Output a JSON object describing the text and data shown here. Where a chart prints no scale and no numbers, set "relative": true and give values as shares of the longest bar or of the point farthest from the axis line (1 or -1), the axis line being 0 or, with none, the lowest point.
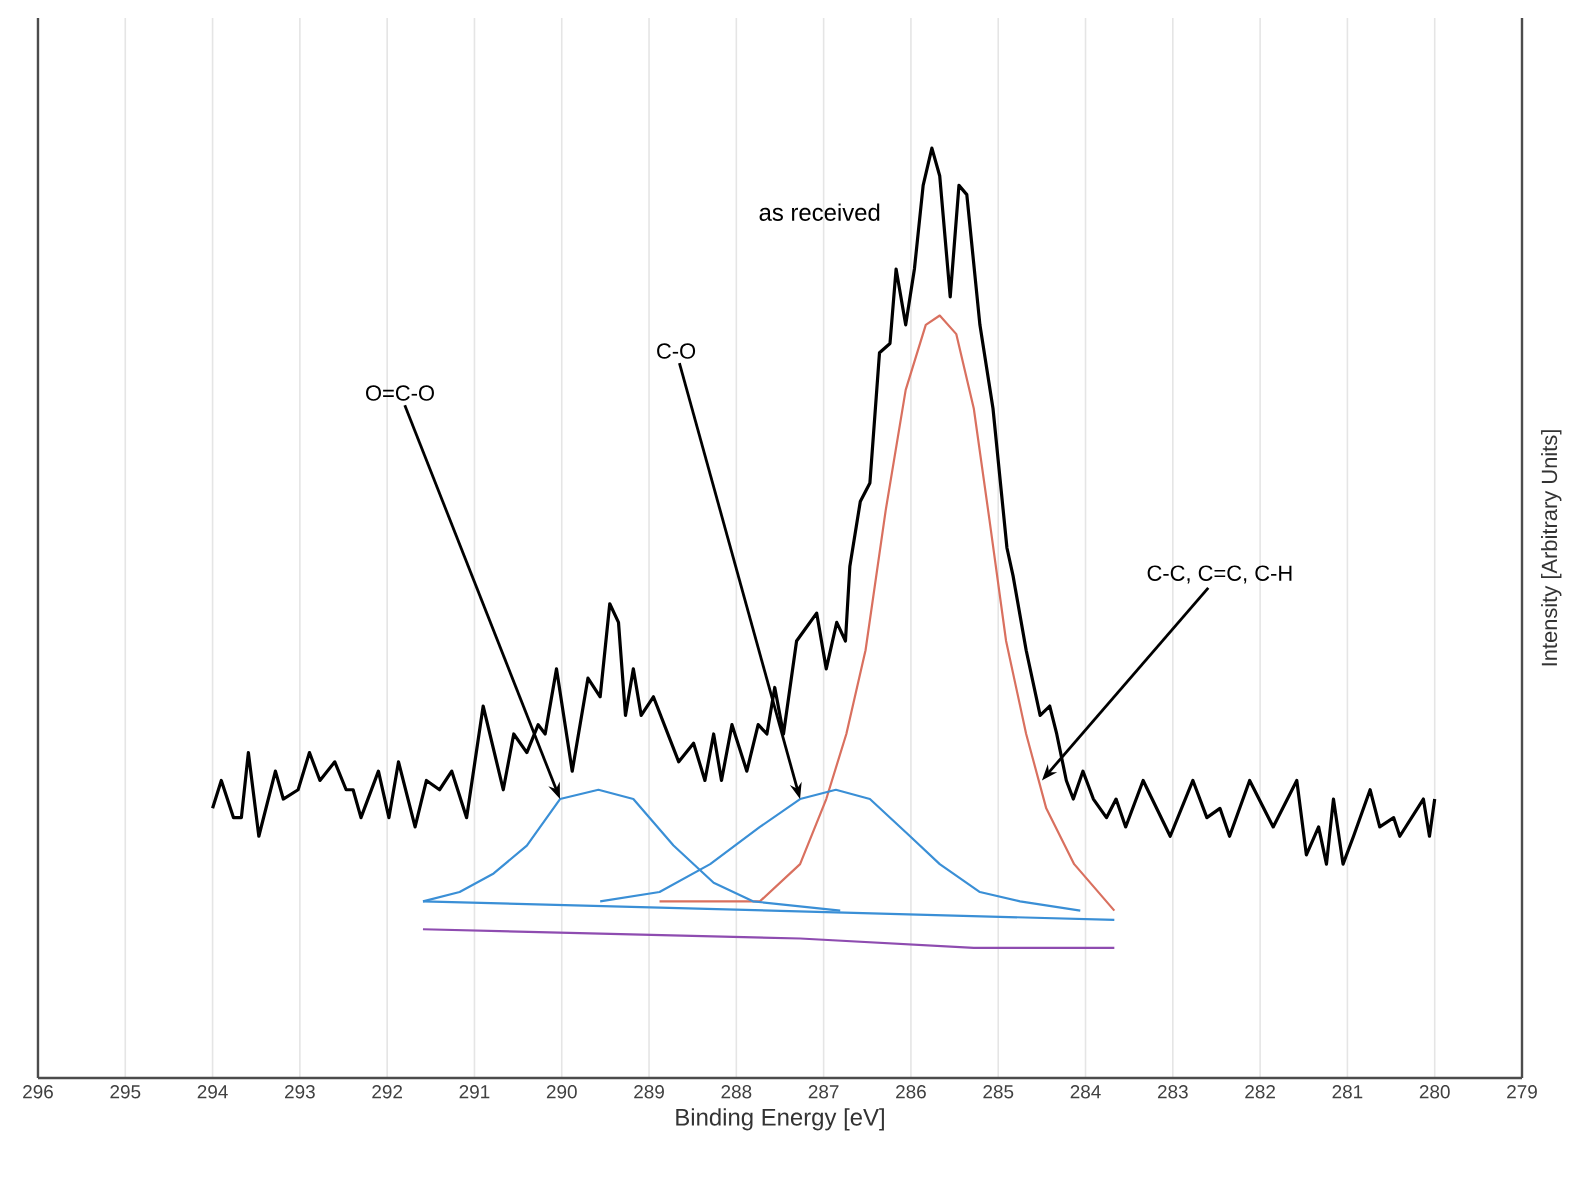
{
  "chart_data": {
    "type": "line",
    "xlabel": "Binding Energy [eV]",
    "ylabel": "Intensity [Arbitrary Units]",
    "xlim": [
      296,
      279
    ],
    "xticks": [
      296,
      295,
      294,
      293,
      292,
      291,
      290,
      289,
      288,
      287,
      286,
      285,
      284,
      283,
      282,
      281,
      280,
      279
    ],
    "grid": "x",
    "relative": true,
    "series": [
      {
        "name": "as received",
        "color": "#000000",
        "x": [
          294.0,
          293.9,
          293.76,
          293.67,
          293.59,
          293.47,
          293.28,
          293.19,
          293.02,
          292.89,
          292.77,
          292.6,
          292.47,
          292.39,
          292.3,
          292.1,
          291.98,
          291.87,
          291.68,
          291.55,
          291.4,
          291.26,
          291.09,
          290.9,
          290.67,
          290.55,
          290.4,
          290.27,
          290.19,
          290.06,
          289.88,
          289.7,
          289.56,
          289.45,
          289.35,
          289.27,
          289.18,
          289.09,
          288.95,
          288.66,
          288.49,
          288.36,
          288.26,
          288.17,
          288.05,
          287.88,
          287.75,
          287.65,
          287.56,
          287.46,
          287.31,
          287.08,
          286.97,
          286.85,
          286.75,
          286.7,
          286.58,
          286.47,
          286.36,
          286.24,
          286.17,
          286.06,
          285.96,
          285.86,
          285.76,
          285.67,
          285.55,
          285.45,
          285.36,
          285.21,
          285.06,
          284.9,
          284.83,
          284.68,
          284.52,
          284.41,
          284.33,
          284.22,
          284.14,
          284.03,
          283.91,
          283.76,
          283.65,
          283.54,
          283.34,
          283.03,
          282.77,
          282.61,
          282.46,
          282.35,
          282.12,
          281.85,
          281.58,
          281.47,
          281.33,
          281.24,
          281.16,
          281.05,
          280.93,
          280.74,
          280.63,
          280.47,
          280.4,
          280.13,
          280.06,
          280.0
        ],
        "values": [
          0.29,
          0.32,
          0.28,
          0.28,
          0.35,
          0.26,
          0.33,
          0.3,
          0.31,
          0.35,
          0.32,
          0.34,
          0.31,
          0.31,
          0.28,
          0.33,
          0.28,
          0.34,
          0.27,
          0.32,
          0.31,
          0.33,
          0.28,
          0.4,
          0.31,
          0.37,
          0.35,
          0.38,
          0.37,
          0.44,
          0.33,
          0.43,
          0.41,
          0.51,
          0.49,
          0.39,
          0.44,
          0.39,
          0.41,
          0.34,
          0.36,
          0.32,
          0.37,
          0.32,
          0.38,
          0.33,
          0.38,
          0.37,
          0.42,
          0.37,
          0.47,
          0.5,
          0.44,
          0.49,
          0.47,
          0.55,
          0.62,
          0.64,
          0.78,
          0.79,
          0.87,
          0.81,
          0.87,
          0.96,
          1.0,
          0.97,
          0.84,
          0.96,
          0.95,
          0.81,
          0.72,
          0.57,
          0.54,
          0.46,
          0.39,
          0.4,
          0.37,
          0.32,
          0.3,
          0.33,
          0.3,
          0.28,
          0.3,
          0.27,
          0.32,
          0.26,
          0.32,
          0.28,
          0.29,
          0.26,
          0.32,
          0.27,
          0.32,
          0.24,
          0.27,
          0.23,
          0.3,
          0.23,
          0.26,
          0.31,
          0.27,
          0.28,
          0.26,
          0.3,
          0.26,
          0.3
        ]
      },
      {
        "color": "#d9705f",
        "x": [
          288.88,
          287.73,
          287.27,
          286.97,
          286.74,
          286.52,
          286.29,
          286.06,
          285.83,
          285.67,
          285.48,
          285.28,
          285.1,
          284.91,
          284.68,
          284.45,
          284.13,
          283.67
        ],
        "values": [
          0.19,
          0.19,
          0.23,
          0.3,
          0.37,
          0.46,
          0.61,
          0.74,
          0.81,
          0.82,
          0.8,
          0.72,
          0.6,
          0.47,
          0.37,
          0.29,
          0.23,
          0.18
        ]
      },
      {
        "color": "#3a8fd6",
        "x": [
          289.56,
          288.88,
          288.3,
          287.73,
          287.27,
          286.86,
          286.47,
          286.01,
          285.67,
          285.21,
          284.75,
          284.06
        ],
        "values": [
          0.19,
          0.2,
          0.23,
          0.27,
          0.3,
          0.31,
          0.3,
          0.26,
          0.23,
          0.2,
          0.19,
          0.18
        ]
      },
      {
        "color": "#3a8fd6",
        "x": [
          291.59,
          291.17,
          290.78,
          290.4,
          290.02,
          289.58,
          289.18,
          288.72,
          288.26,
          287.81,
          286.81
        ],
        "values": [
          0.19,
          0.2,
          0.22,
          0.25,
          0.3,
          0.31,
          0.3,
          0.25,
          0.21,
          0.19,
          0.18
        ]
      },
      {
        "color": "#3a8fd6",
        "x": [
          291.59,
          287.6,
          283.67
        ],
        "values": [
          0.19,
          0.18,
          0.17
        ]
      },
      {
        "color": "#8e4cb0",
        "x": [
          291.59,
          287.27,
          285.28,
          283.67
        ],
        "values": [
          0.16,
          0.15,
          0.14,
          0.14
        ]
      }
    ],
    "annotations": [
      {
        "text": "O=C-O",
        "x": 290.02,
        "y": 0.3
      },
      {
        "text": "C-O",
        "x": 287.27,
        "y": 0.3
      },
      {
        "text": "C-C, C=C, C-H",
        "x": 284.5,
        "y": 0.32
      }
    ]
  }
}
